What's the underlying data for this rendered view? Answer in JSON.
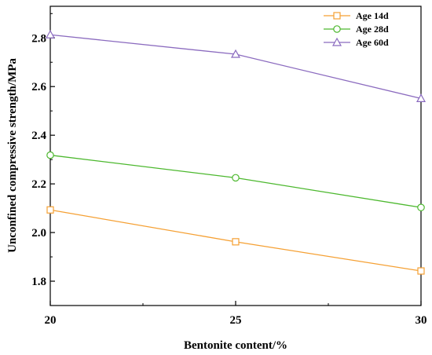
{
  "chart_data": {
    "type": "line",
    "title": "",
    "xlabel": "Bentonite content/%",
    "ylabel": "Unconfined compressive strength/MPa",
    "xlim": [
      20,
      30
    ],
    "ylim": [
      1.7,
      2.93
    ],
    "x_ticks": [
      20,
      25,
      30
    ],
    "x_tick_labels": [
      "20",
      "25",
      "30"
    ],
    "x_minor_ticks": [
      22.5,
      27.5
    ],
    "y_ticks": [
      1.8,
      2.0,
      2.2,
      2.4,
      2.6,
      2.8
    ],
    "y_tick_labels": [
      "1.8",
      "2.0",
      "2.2",
      "2.4",
      "2.6",
      "2.8"
    ],
    "y_minor_ticks": [
      1.7,
      1.9,
      2.1,
      2.3,
      2.5,
      2.7,
      2.9
    ],
    "grid": false,
    "legend_position": "top-right",
    "x": [
      20,
      25,
      30
    ],
    "series": [
      {
        "name": "Age 14d",
        "values": [
          2.093,
          1.962,
          1.842
        ],
        "color": "#f5a033",
        "marker": "square"
      },
      {
        "name": "Age 28d",
        "values": [
          2.318,
          2.225,
          2.103
        ],
        "color": "#4cb82e",
        "marker": "circle"
      },
      {
        "name": "Age 60d",
        "values": [
          2.813,
          2.733,
          2.551
        ],
        "color": "#8b6bbf",
        "marker": "triangle"
      }
    ]
  }
}
